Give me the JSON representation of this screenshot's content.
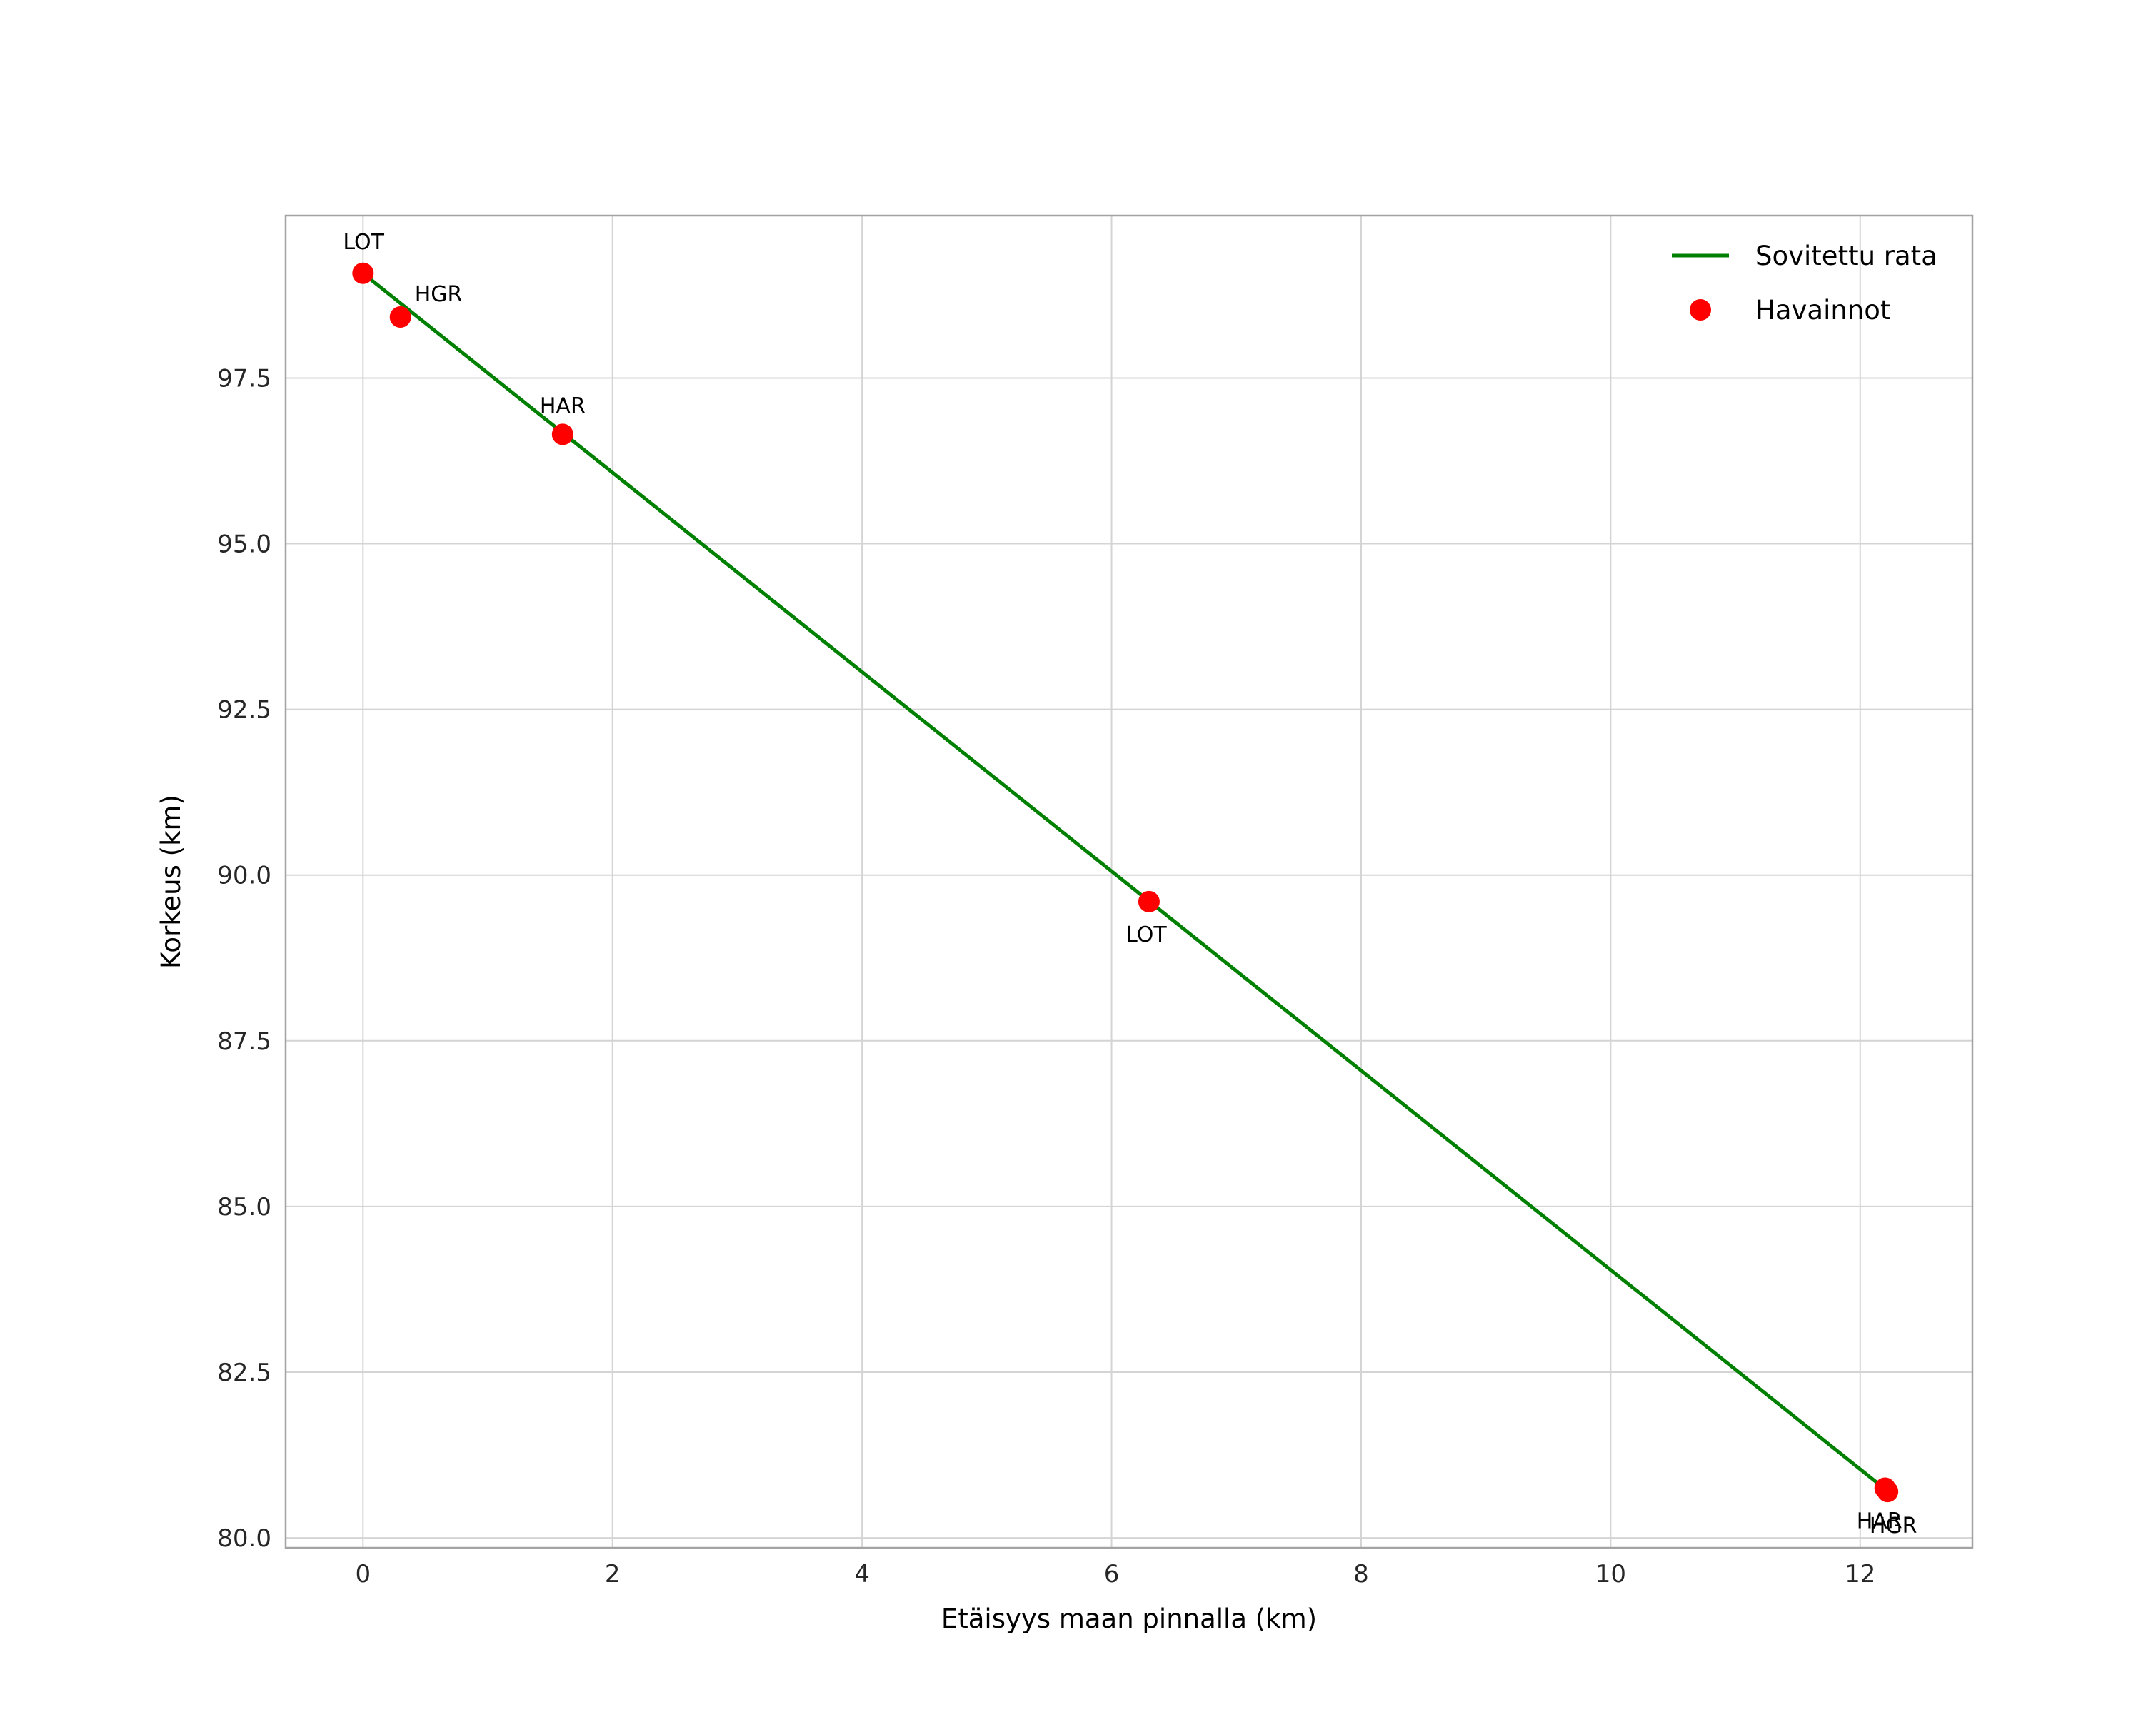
{
  "figure": {
    "background": "#ffffff"
  },
  "chart_data": {
    "type": "scatter",
    "title": "",
    "xlabel": "Etäisyys maan pinnalla (km)",
    "ylabel": "Korkeus (km)",
    "xlim": [
      -0.62,
      12.9
    ],
    "ylim": [
      79.85,
      99.95
    ],
    "xticks": [
      0,
      2,
      4,
      6,
      8,
      10,
      12
    ],
    "yticks": [
      80.0,
      82.5,
      85.0,
      87.5,
      90.0,
      92.5,
      95.0,
      97.5
    ],
    "grid": true,
    "style": {
      "grid_color": "#d4d4d4",
      "border_color": "#a3a3a3",
      "tick_color": "#262626",
      "label_color": "#000000",
      "line_color": "#008000",
      "marker_color": "#ff0000",
      "marker_radius": 15,
      "line_width": 5
    },
    "legend": {
      "position": "upper right",
      "entries": [
        {
          "label": "Sovitettu rata",
          "type": "line",
          "color": "#008000"
        },
        {
          "label": "Havainnot",
          "type": "marker",
          "color": "#ff0000"
        }
      ]
    },
    "series": [
      {
        "name": "Sovitettu rata",
        "type": "line",
        "color": "#008000",
        "x": [
          0.0,
          12.21
        ],
        "y": [
          99.08,
          80.72
        ]
      },
      {
        "name": "Havainnot",
        "type": "scatter",
        "color": "#ff0000",
        "points": [
          {
            "label": "LOT",
            "x": 0.0,
            "y": 99.08,
            "dx": -28,
            "dy": -34,
            "anchor": "start"
          },
          {
            "label": "HGR",
            "x": 0.3,
            "y": 98.42,
            "dx": 20,
            "dy": -22,
            "anchor": "start"
          },
          {
            "label": "HAR",
            "x": 1.6,
            "y": 96.65,
            "dx": 0,
            "dy": -30,
            "anchor": "middle"
          },
          {
            "label": "LOT",
            "x": 6.3,
            "y": 89.6,
            "dx": -4,
            "dy": 56,
            "anchor": "middle"
          },
          {
            "label": "HAR",
            "x": 12.2,
            "y": 80.75,
            "dx": -8,
            "dy": 56,
            "anchor": "middle"
          },
          {
            "label": "HGR",
            "x": 12.22,
            "y": 80.7,
            "dx": 8,
            "dy": 58,
            "anchor": "middle"
          }
        ]
      }
    ]
  }
}
